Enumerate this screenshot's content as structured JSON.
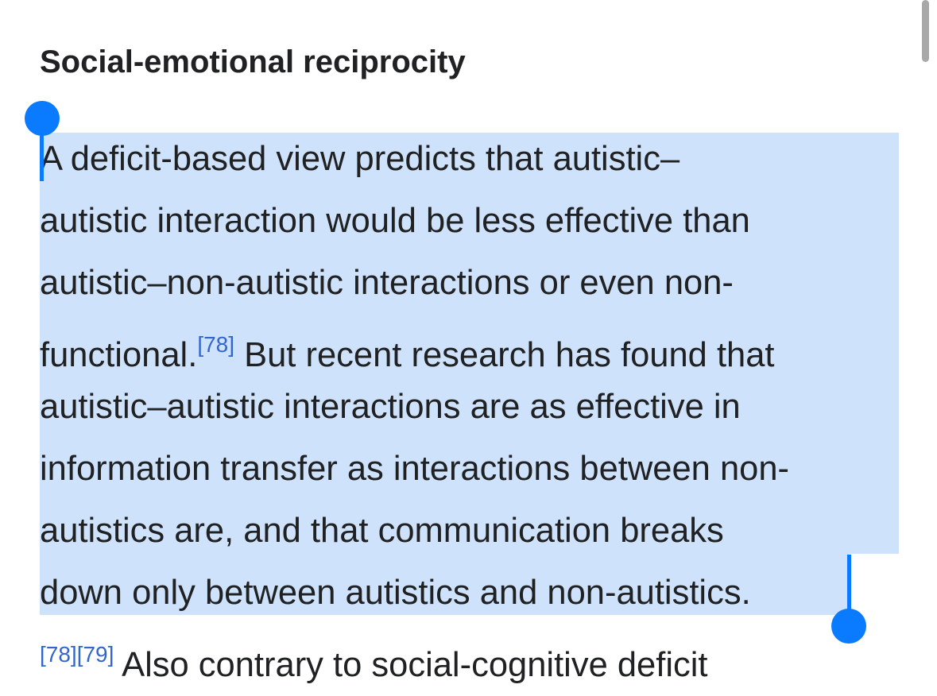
{
  "heading": "Social-emotional reciprocity",
  "paragraph": {
    "lines": [
      [
        {
          "text": "A deficit-based view predicts that autistic–"
        }
      ],
      [
        {
          "text": "autistic interaction would be less effective than"
        }
      ],
      [
        {
          "text": "autistic–non-autistic interactions or even non-"
        }
      ],
      [
        {
          "text": "functional."
        },
        {
          "ref": "[78]"
        },
        {
          "text": " But recent research has found that"
        }
      ],
      [
        {
          "text": "autistic–autistic interactions are as effective in"
        }
      ],
      [
        {
          "text": "information transfer as interactions between non-"
        }
      ],
      [
        {
          "text": "autistics are, and that communication breaks"
        }
      ],
      [
        {
          "text": "down only between autistics and non-autistics."
        }
      ],
      [
        {
          "ref": "[78][79]"
        },
        {
          "text": " Also contrary to social-cognitive deficit"
        }
      ]
    ]
  }
}
